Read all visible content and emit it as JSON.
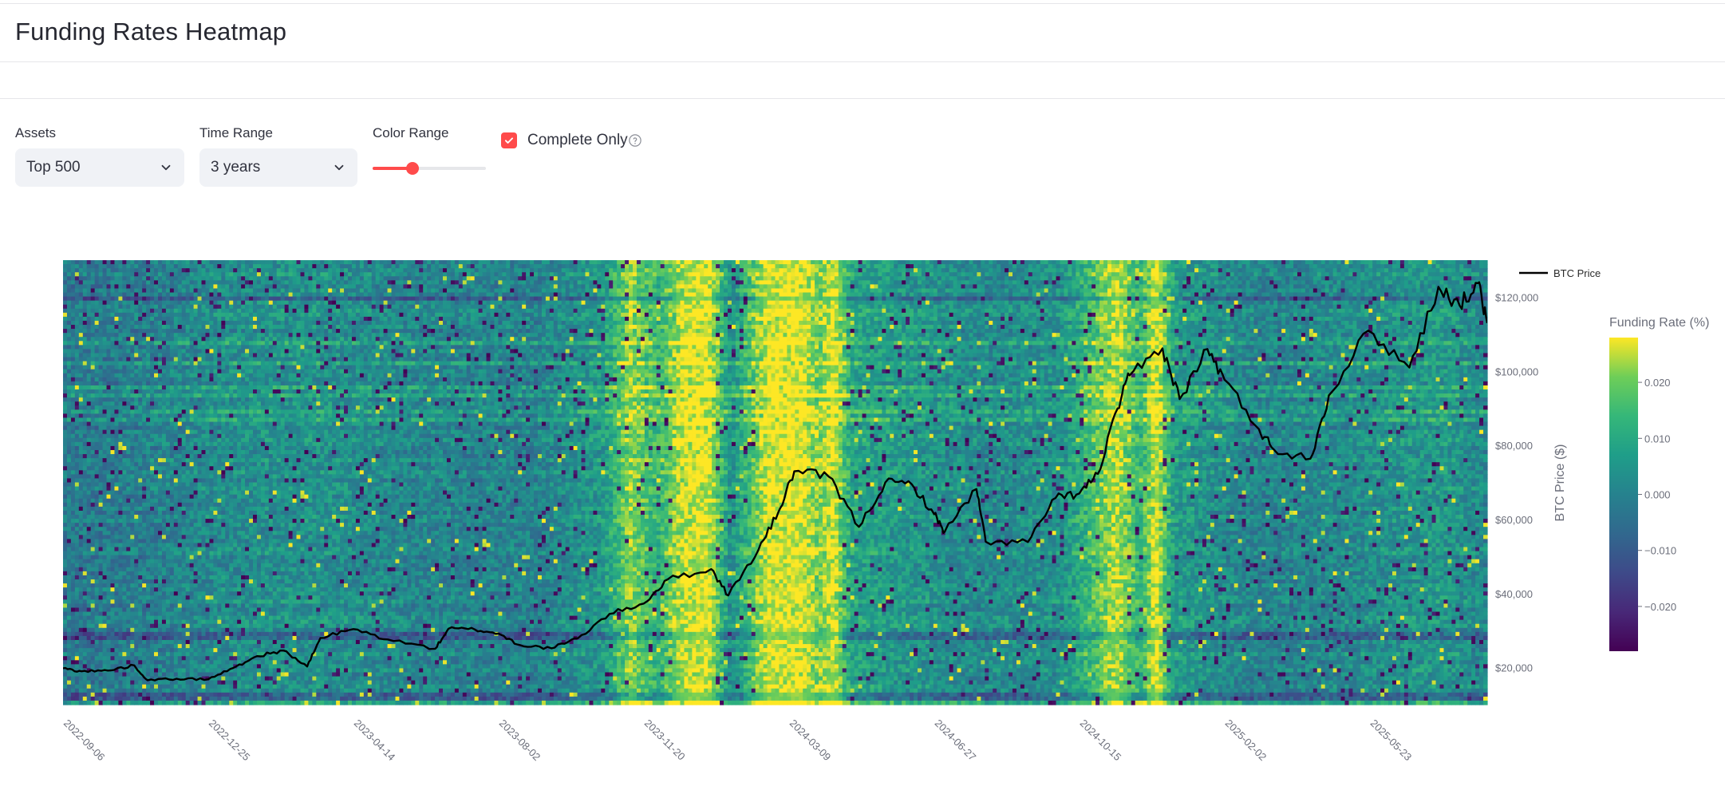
{
  "page": {
    "title": "Funding Rates Heatmap"
  },
  "controls": {
    "assets": {
      "label": "Assets",
      "value": "Top 500"
    },
    "time_range": {
      "label": "Time Range",
      "value": "3 years"
    },
    "color_range": {
      "label": "Color Range",
      "value": 0.35
    },
    "complete_only": {
      "label": "Complete Only",
      "checked": true
    }
  },
  "colors": {
    "accent": "#ff4b4b",
    "price_line": "#000000"
  },
  "icons": {
    "select_chevron": "chevron-down-icon",
    "checkbox": "check-icon",
    "help": "help-circle-icon"
  },
  "chart_data": {
    "type": "heatmap",
    "x_start": "2022-09-06",
    "x_end": "2025-08-20",
    "x_ticks": [
      "2022-09-06",
      "2022-12-25",
      "2023-04-14",
      "2023-08-02",
      "2023-11-20",
      "2024-03-09",
      "2024-06-27",
      "2024-10-15",
      "2025-02-02",
      "2025-05-23"
    ],
    "colorbar": {
      "title": "Funding Rate (%)",
      "colorscale": "viridis",
      "range": [
        -0.028,
        0.028
      ],
      "ticks": [
        "0.020",
        "0.010",
        "0.000",
        "−0.010",
        "−0.020"
      ],
      "tick_values": [
        0.02,
        0.01,
        0.0,
        -0.01,
        -0.02
      ]
    },
    "heatmap_bias": [
      {
        "date": "2022-09-06",
        "value": -0.002
      },
      {
        "date": "2022-11-01",
        "value": -0.001
      },
      {
        "date": "2023-01-10",
        "value": 0.003
      },
      {
        "date": "2023-03-15",
        "value": 0.004
      },
      {
        "date": "2023-06-01",
        "value": 0.001
      },
      {
        "date": "2023-09-01",
        "value": 0.0
      },
      {
        "date": "2023-10-20",
        "value": 0.006
      },
      {
        "date": "2023-11-10",
        "value": 0.022
      },
      {
        "date": "2023-12-01",
        "value": 0.013
      },
      {
        "date": "2023-12-20",
        "value": 0.026
      },
      {
        "date": "2024-01-08",
        "value": 0.028
      },
      {
        "date": "2024-01-25",
        "value": 0.004
      },
      {
        "date": "2024-02-22",
        "value": 0.027
      },
      {
        "date": "2024-03-18",
        "value": 0.028
      },
      {
        "date": "2024-04-01",
        "value": 0.02
      },
      {
        "date": "2024-04-12",
        "value": 0.028
      },
      {
        "date": "2024-04-25",
        "value": 0.009
      },
      {
        "date": "2024-06-01",
        "value": 0.006
      },
      {
        "date": "2024-08-01",
        "value": 0.002
      },
      {
        "date": "2024-10-01",
        "value": 0.004
      },
      {
        "date": "2024-11-12",
        "value": 0.025
      },
      {
        "date": "2024-12-01",
        "value": 0.013
      },
      {
        "date": "2024-12-12",
        "value": 0.028
      },
      {
        "date": "2024-12-26",
        "value": 0.007
      },
      {
        "date": "2025-03-01",
        "value": 0.0
      },
      {
        "date": "2025-05-20",
        "value": 0.003
      },
      {
        "date": "2025-07-15",
        "value": 0.006
      },
      {
        "date": "2025-08-20",
        "value": 0.001
      }
    ],
    "series": [
      {
        "name": "BTC Price",
        "axis": "BTC Price ($)",
        "y_range": [
          10000,
          130000
        ],
        "y_ticks": [
          "$20,000",
          "$40,000",
          "$60,000",
          "$80,000",
          "$100,000",
          "$120,000"
        ],
        "y_tick_values": [
          20000,
          40000,
          60000,
          80000,
          100000,
          120000
        ],
        "points": [
          [
            "2022-09-06",
            19800
          ],
          [
            "2022-09-20",
            19000
          ],
          [
            "2022-10-10",
            19200
          ],
          [
            "2022-10-30",
            20600
          ],
          [
            "2022-11-09",
            16600
          ],
          [
            "2022-12-01",
            17000
          ],
          [
            "2022-12-25",
            16850
          ],
          [
            "2023-01-13",
            19900
          ],
          [
            "2023-01-31",
            23100
          ],
          [
            "2023-02-20",
            24600
          ],
          [
            "2023-03-10",
            20300
          ],
          [
            "2023-03-20",
            28000
          ],
          [
            "2023-04-14",
            30400
          ],
          [
            "2023-05-10",
            27600
          ],
          [
            "2023-06-15",
            25100
          ],
          [
            "2023-06-25",
            30500
          ],
          [
            "2023-07-15",
            30300
          ],
          [
            "2023-08-02",
            29200
          ],
          [
            "2023-08-18",
            26100
          ],
          [
            "2023-09-11",
            25200
          ],
          [
            "2023-10-01",
            27900
          ],
          [
            "2023-10-25",
            34500
          ],
          [
            "2023-11-20",
            37300
          ],
          [
            "2023-12-08",
            43800
          ],
          [
            "2024-01-10",
            46600
          ],
          [
            "2024-01-23",
            39500
          ],
          [
            "2024-02-15",
            51900
          ],
          [
            "2024-03-01",
            62000
          ],
          [
            "2024-03-13",
            73000
          ],
          [
            "2024-04-08",
            71600
          ],
          [
            "2024-05-01",
            58000
          ],
          [
            "2024-05-21",
            70000
          ],
          [
            "2024-06-10",
            69500
          ],
          [
            "2024-06-27",
            61400
          ],
          [
            "2024-07-05",
            56700
          ],
          [
            "2024-07-29",
            68200
          ],
          [
            "2024-08-05",
            54000
          ],
          [
            "2024-09-06",
            53900
          ],
          [
            "2024-09-27",
            65800
          ],
          [
            "2024-10-15",
            67000
          ],
          [
            "2024-10-29",
            72300
          ],
          [
            "2024-11-13",
            90000
          ],
          [
            "2024-11-22",
            98900
          ],
          [
            "2024-12-17",
            106200
          ],
          [
            "2024-12-30",
            92500
          ],
          [
            "2025-01-20",
            106000
          ],
          [
            "2025-02-02",
            97700
          ],
          [
            "2025-02-28",
            84400
          ],
          [
            "2025-03-11",
            79000
          ],
          [
            "2025-04-08",
            76400
          ],
          [
            "2025-04-22",
            93500
          ],
          [
            "2025-05-22",
            111000
          ],
          [
            "2025-06-22",
            101000
          ],
          [
            "2025-07-14",
            122800
          ],
          [
            "2025-07-30",
            117800
          ],
          [
            "2025-08-13",
            123800
          ],
          [
            "2025-08-20",
            113000
          ]
        ]
      }
    ],
    "legend_placement": "top-right",
    "grid": false
  }
}
